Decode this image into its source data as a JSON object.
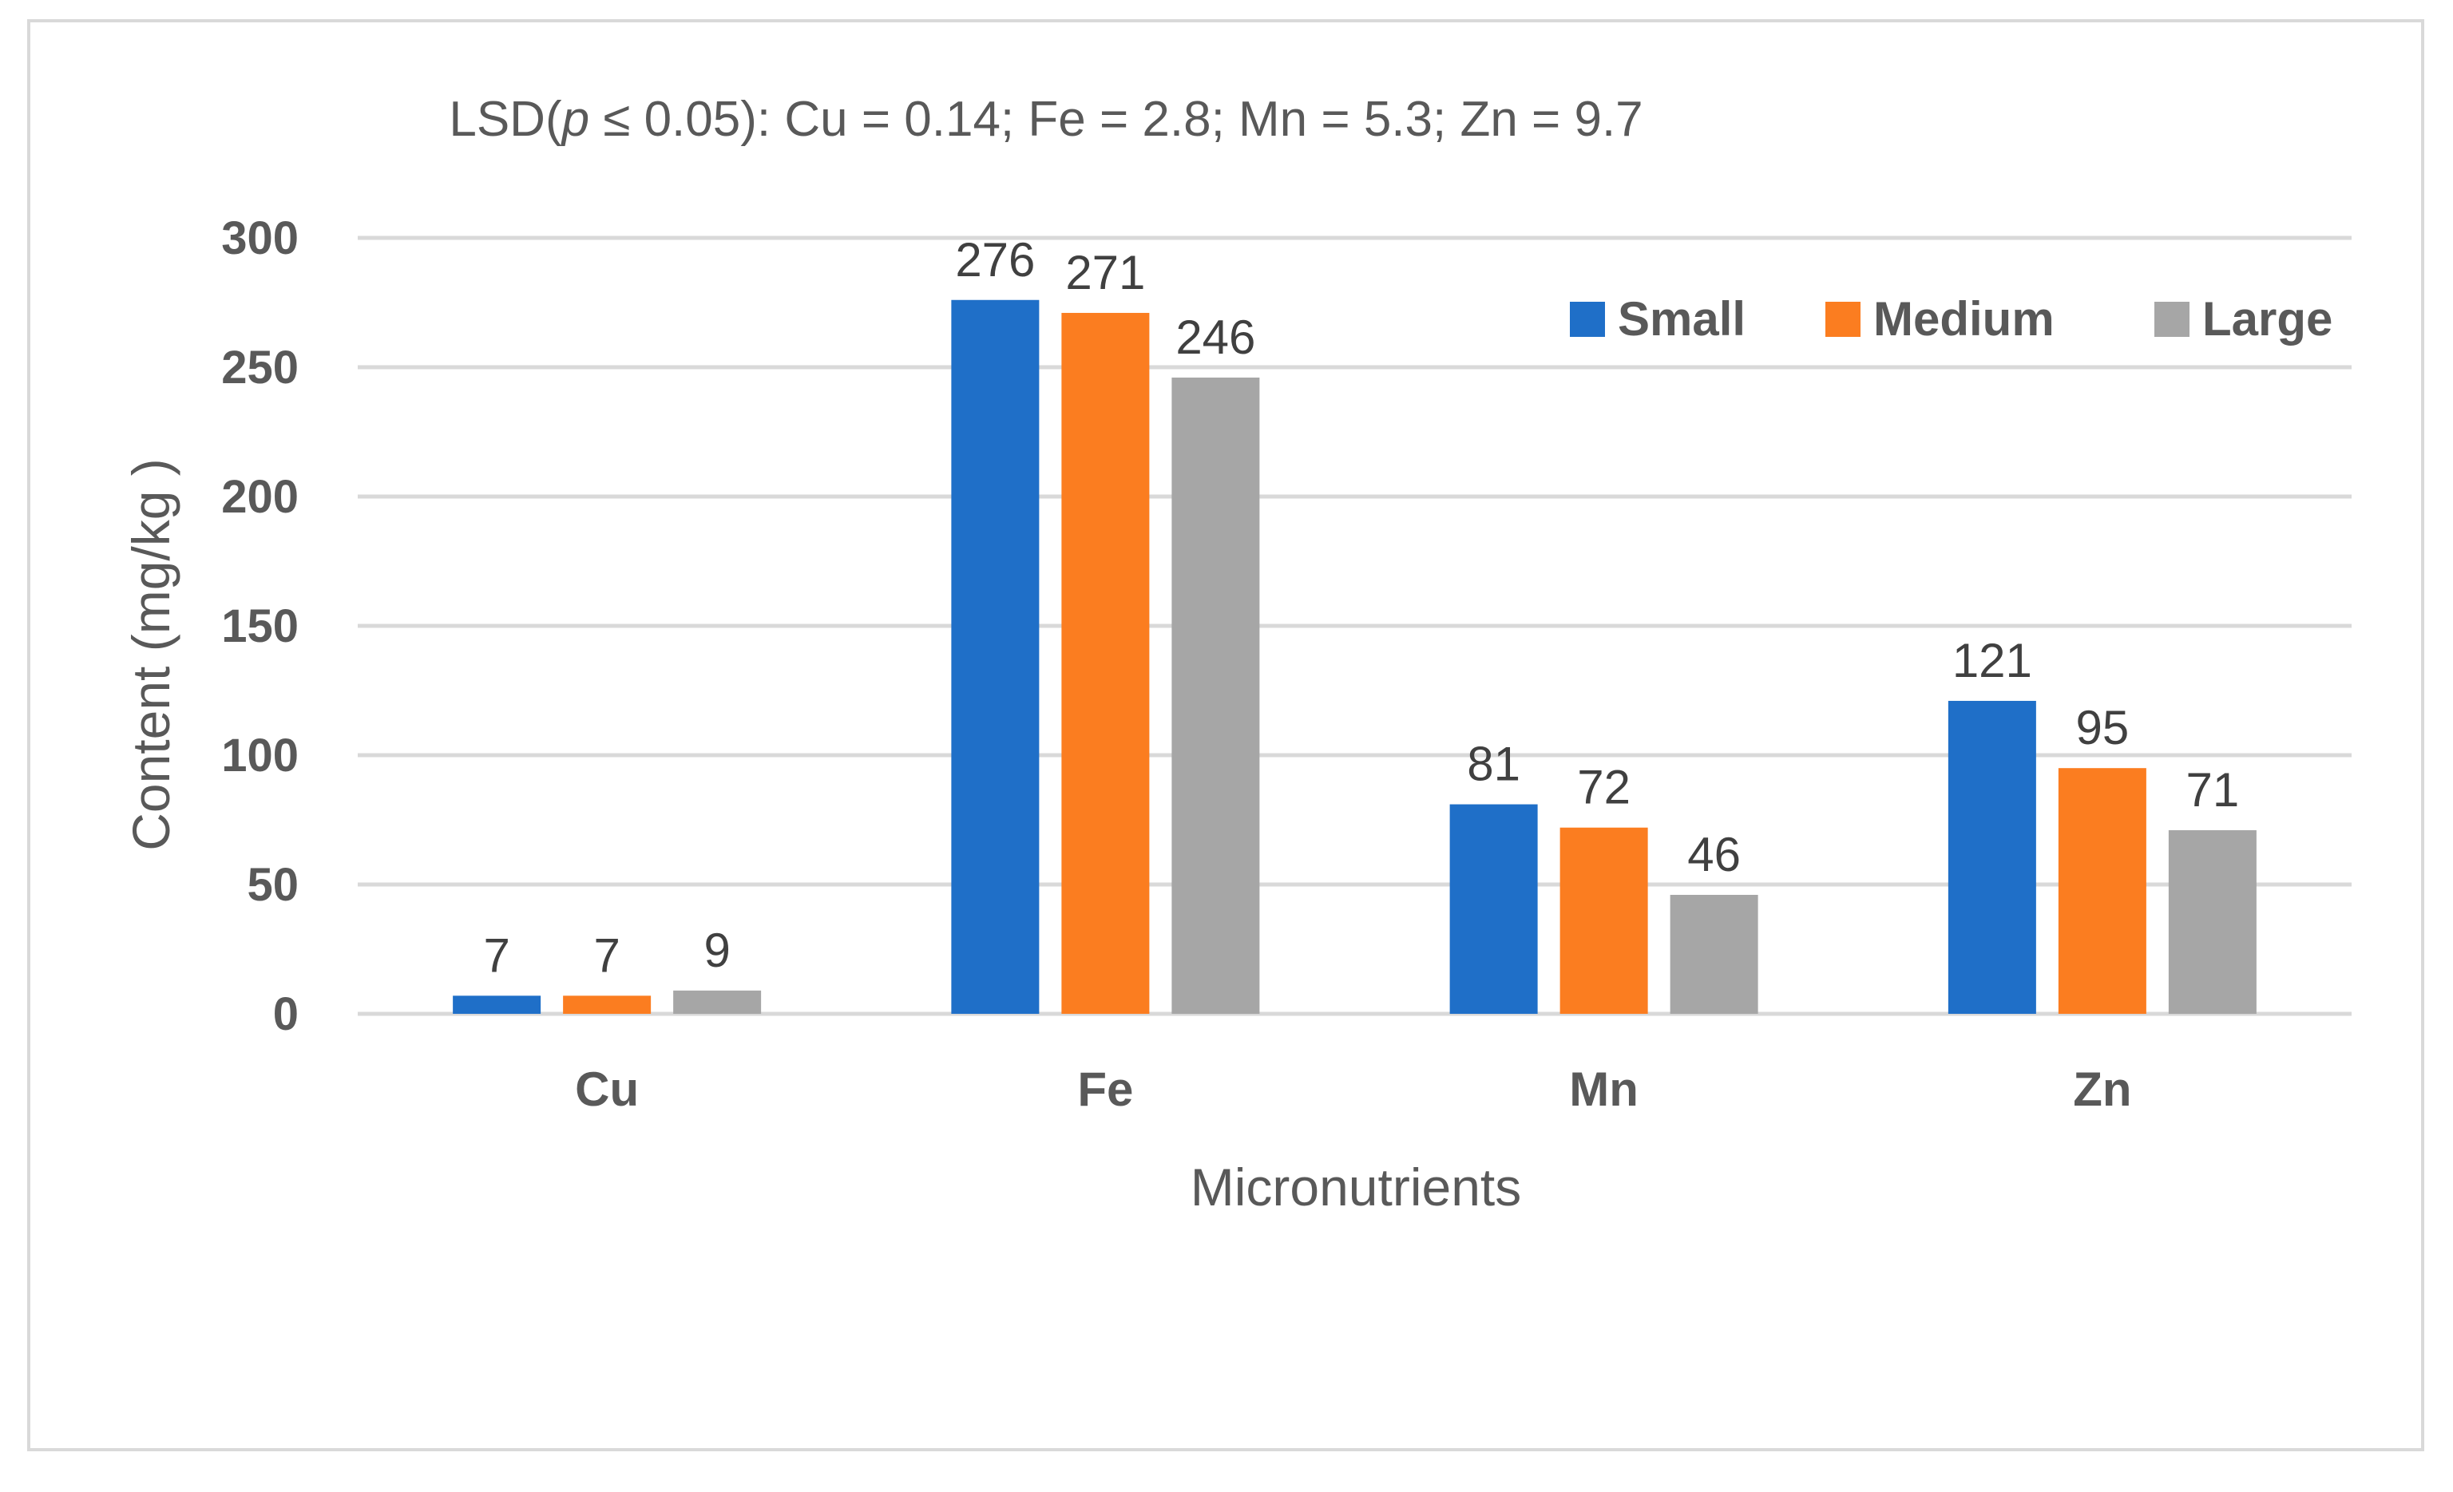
{
  "chart_data": {
    "type": "bar",
    "title": "",
    "annotation": {
      "prefix": "LSD(",
      "italic": "p",
      "rest": " ≤ 0.05): Cu = 0.14; Fe = 2.8; Mn = 5.3; Zn = 9.7"
    },
    "categories": [
      "Cu",
      "Fe",
      "Mn",
      "Zn"
    ],
    "series": [
      {
        "name": "Small",
        "color": "#1f6fc8",
        "values": [
          7,
          276,
          81,
          121
        ]
      },
      {
        "name": "Medium",
        "color": "#fb7d20",
        "values": [
          7,
          271,
          72,
          95
        ]
      },
      {
        "name": "Large",
        "color": "#a6a6a6",
        "values": [
          9,
          246,
          46,
          71
        ]
      }
    ],
    "xlabel": "Micronutrients",
    "ylabel": "Content (mg/kg )",
    "ylim": [
      0,
      300
    ],
    "yticks": [
      0,
      50,
      100,
      150,
      200,
      250,
      300
    ],
    "grid": true,
    "legend_position": "top-right",
    "gridline_color": "#d9d9d9"
  }
}
